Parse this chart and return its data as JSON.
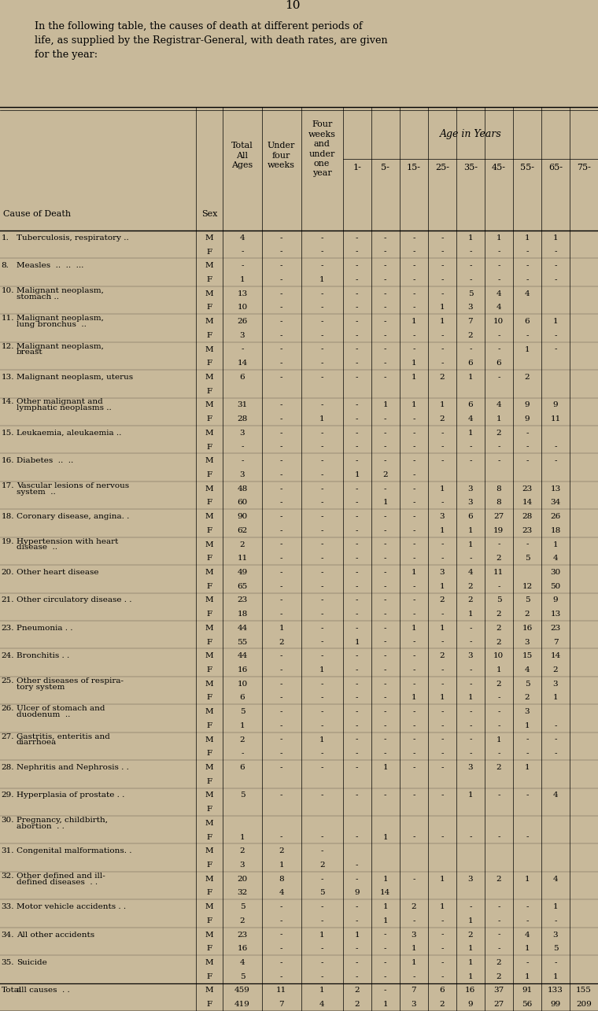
{
  "page_number": "10",
  "intro_text": "In the following table, the causes of death at different periods of\nlife, as supplied by the Registrar-General, with death rates, are given\nfor the year:",
  "bg_color": "#c8b99a",
  "age_in_years_label": "Age in Years",
  "rows": [
    {
      "num": "1.",
      "cause": "Tuberculosis, respiratory ..",
      "M": [
        "4",
        "-",
        "-",
        "-",
        "-",
        "-",
        "-",
        "1",
        "1",
        "1",
        "1"
      ],
      "F": [
        "-",
        "-",
        "-",
        "-",
        "-",
        "-",
        "-",
        "-",
        "-",
        "-",
        "-"
      ]
    },
    {
      "num": "8.",
      "cause": "Measles  ..  ..  ...",
      "M": [
        "-",
        "-",
        "-",
        "-",
        "-",
        "-",
        "-",
        "-",
        "-",
        "-",
        "-"
      ],
      "F": [
        "1",
        "-",
        "1",
        "-",
        "-",
        "-",
        "-",
        "-",
        "-",
        "-",
        "-"
      ]
    },
    {
      "num": "10.",
      "cause": "Malignant neoplasm,\nstomach ..",
      "M": [
        "13",
        "-",
        "-",
        "-",
        "-",
        "-",
        "-",
        "5",
        "4",
        "4",
        ""
      ],
      "F": [
        "10",
        "-",
        "-",
        "-",
        "-",
        "-",
        "1",
        "3",
        "4",
        "",
        ""
      ]
    },
    {
      "num": "11.",
      "cause": "Malignant neoplasm,\nlung bronchus  ..",
      "M": [
        "26",
        "-",
        "-",
        "-",
        "-",
        "1",
        "1",
        "7",
        "10",
        "6",
        "1"
      ],
      "F": [
        "3",
        "-",
        "-",
        "-",
        "-",
        "-",
        "-",
        "2",
        "-",
        "-",
        "-"
      ]
    },
    {
      "num": "12.",
      "cause": "Malignant neoplasm,\nbreast",
      "M": [
        "-",
        "-",
        "-",
        "-",
        "-",
        "-",
        "-",
        "-",
        "-",
        "1",
        "-"
      ],
      "F": [
        "14",
        "-",
        "-",
        "-",
        "-",
        "1",
        "-",
        "6",
        "6",
        "",
        ""
      ]
    },
    {
      "num": "13.",
      "cause": "Malignant neoplasm, uterus",
      "M": [
        "6",
        "-",
        "-",
        "-",
        "-",
        "1",
        "2",
        "1",
        "-",
        "2",
        ""
      ],
      "F": [
        "",
        "",
        "",
        "",
        "",
        "",
        "",
        "",
        "",
        "",
        ""
      ]
    },
    {
      "num": "14.",
      "cause": "Other malignant and\nlymphatic neoplasms ..",
      "M": [
        "31",
        "-",
        "-",
        "-",
        "1",
        "1",
        "1",
        "6",
        "4",
        "9",
        "9"
      ],
      "F": [
        "28",
        "-",
        "1",
        "-",
        "-",
        "-",
        "2",
        "4",
        "1",
        "9",
        "11"
      ]
    },
    {
      "num": "15.",
      "cause": "Leukaemia, aleukaemia ..",
      "M": [
        "3",
        "-",
        "-",
        "-",
        "-",
        "-",
        "-",
        "1",
        "2",
        "-",
        ""
      ],
      "F": [
        "-",
        "-",
        "-",
        "-",
        "-",
        "-",
        "-",
        "-",
        "-",
        "-",
        "-"
      ]
    },
    {
      "num": "16.",
      "cause": "Diabetes  ..  ..",
      "M": [
        "-",
        "-",
        "-",
        "-",
        "-",
        "-",
        "-",
        "-",
        "-",
        "-",
        "-"
      ],
      "F": [
        "3",
        "-",
        "-",
        "1",
        "2",
        "-",
        "",
        "",
        "",
        "",
        ""
      ]
    },
    {
      "num": "17.",
      "cause": "Vascular lesions of nervous\nsystem  ..",
      "M": [
        "48",
        "-",
        "-",
        "-",
        "-",
        "-",
        "1",
        "3",
        "8",
        "23",
        "13"
      ],
      "F": [
        "60",
        "-",
        "-",
        "-",
        "1",
        "-",
        "-",
        "3",
        "8",
        "14",
        "34"
      ]
    },
    {
      "num": "18.",
      "cause": "Coronary disease, angina. .",
      "M": [
        "90",
        "-",
        "-",
        "-",
        "-",
        "-",
        "3",
        "6",
        "27",
        "28",
        "26"
      ],
      "F": [
        "62",
        "-",
        "-",
        "-",
        "-",
        "-",
        "1",
        "1",
        "19",
        "23",
        "18"
      ]
    },
    {
      "num": "19.",
      "cause": "Hypertension with heart\ndisease  ..",
      "M": [
        "2",
        "-",
        "-",
        "-",
        "-",
        "-",
        "-",
        "1",
        "-",
        "-",
        "1"
      ],
      "F": [
        "11",
        "-",
        "-",
        "-",
        "-",
        "-",
        "-",
        "-",
        "2",
        "5",
        "4"
      ]
    },
    {
      "num": "20.",
      "cause": "Other heart disease",
      "M": [
        "49",
        "-",
        "-",
        "-",
        "-",
        "1",
        "3",
        "4",
        "11",
        "",
        "30"
      ],
      "F": [
        "65",
        "-",
        "-",
        "-",
        "-",
        "-",
        "1",
        "2",
        "-",
        "12",
        "50"
      ]
    },
    {
      "num": "21.",
      "cause": "Other circulatory disease . .",
      "M": [
        "23",
        "-",
        "-",
        "-",
        "-",
        "-",
        "2",
        "2",
        "5",
        "5",
        "9"
      ],
      "F": [
        "18",
        "-",
        "-",
        "-",
        "-",
        "-",
        "-",
        "1",
        "2",
        "2",
        "13"
      ]
    },
    {
      "num": "23.",
      "cause": "Pneumonia . .",
      "M": [
        "44",
        "1",
        "-",
        "-",
        "-",
        "1",
        "1",
        "-",
        "2",
        "16",
        "23"
      ],
      "F": [
        "55",
        "2",
        "-",
        "1",
        "-",
        "-",
        "-",
        "-",
        "2",
        "3",
        "7"
      ]
    },
    {
      "num": "24.",
      "cause": "Bronchitis . .",
      "M": [
        "44",
        "-",
        "-",
        "-",
        "-",
        "-",
        "2",
        "3",
        "10",
        "15",
        "14"
      ],
      "F": [
        "16",
        "-",
        "1",
        "-",
        "-",
        "-",
        "-",
        "-",
        "1",
        "4",
        "2"
      ]
    },
    {
      "num": "25.",
      "cause": "Other diseases of respira-\ntory system",
      "M": [
        "10",
        "-",
        "-",
        "-",
        "-",
        "-",
        "-",
        "-",
        "2",
        "5",
        "3"
      ],
      "F": [
        "6",
        "-",
        "-",
        "-",
        "-",
        "1",
        "1",
        "1",
        "-",
        "2",
        "1"
      ]
    },
    {
      "num": "26.",
      "cause": "Ulcer of stomach and\nduodenum  ..",
      "M": [
        "5",
        "-",
        "-",
        "-",
        "-",
        "-",
        "-",
        "-",
        "-",
        "3",
        ""
      ],
      "F": [
        "1",
        "-",
        "-",
        "-",
        "-",
        "-",
        "-",
        "-",
        "-",
        "1",
        "-"
      ]
    },
    {
      "num": "27.",
      "cause": "Gastritis, enteritis and\ndiarrhoea",
      "M": [
        "2",
        "-",
        "1",
        "-",
        "-",
        "-",
        "-",
        "-",
        "1",
        "-",
        "-"
      ],
      "F": [
        "-",
        "-",
        "-",
        "-",
        "-",
        "-",
        "-",
        "-",
        "-",
        "-",
        "-"
      ]
    },
    {
      "num": "28.",
      "cause": "Nephritis and Nephrosis . .",
      "M": [
        "6",
        "-",
        "-",
        "-",
        "1",
        "-",
        "-",
        "3",
        "2",
        "1",
        ""
      ],
      "F": [
        "",
        "",
        "",
        "",
        "",
        "",
        "",
        "",
        "",
        "",
        ""
      ]
    },
    {
      "num": "29.",
      "cause": "Hyperplasia of prostate . .",
      "M": [
        "5",
        "-",
        "-",
        "-",
        "-",
        "-",
        "-",
        "1",
        "-",
        "-",
        "4"
      ],
      "F": [
        "",
        "",
        "",
        "",
        "",
        "",
        "",
        "",
        "",
        "",
        ""
      ]
    },
    {
      "num": "30.",
      "cause": "Pregnancy, childbirth,\nabortion  . .",
      "M": [
        "",
        "",
        "",
        "",
        "",
        "",
        "",
        "",
        "",
        "",
        ""
      ],
      "F": [
        "1",
        "-",
        "-",
        "-",
        "1",
        "-",
        "-",
        "-",
        "-",
        "-",
        ""
      ]
    },
    {
      "num": "31.",
      "cause": "Congenital malformations. .",
      "M": [
        "2",
        "2",
        "-",
        "",
        "",
        "",
        "",
        "",
        "",
        "",
        ""
      ],
      "F": [
        "3",
        "1",
        "2",
        "-",
        "",
        "",
        "",
        "",
        "",
        "",
        ""
      ]
    },
    {
      "num": "32.",
      "cause": "Other defined and ill-\ndefined diseases  . .",
      "M": [
        "20",
        "8",
        "-",
        "-",
        "1",
        "-",
        "1",
        "3",
        "2",
        "1",
        "4"
      ],
      "F": [
        "32",
        "4",
        "5",
        "9",
        "14",
        "",
        "",
        "",
        "",
        "",
        ""
      ]
    },
    {
      "num": "33.",
      "cause": "Motor vehicle accidents . .",
      "M": [
        "5",
        "-",
        "-",
        "-",
        "1",
        "2",
        "1",
        "-",
        "-",
        "-",
        "1"
      ],
      "F": [
        "2",
        "-",
        "-",
        "-",
        "1",
        "-",
        "-",
        "1",
        "-",
        "-",
        "-"
      ]
    },
    {
      "num": "34.",
      "cause": "All other accidents",
      "M": [
        "23",
        "-",
        "1",
        "1",
        "-",
        "3",
        "-",
        "2",
        "-",
        "4",
        "3"
      ],
      "F": [
        "16",
        "-",
        "-",
        "-",
        "-",
        "1",
        "-",
        "1",
        "-",
        "1",
        "5"
      ]
    },
    {
      "num": "35.",
      "cause": "Suicide",
      "M": [
        "4",
        "-",
        "-",
        "-",
        "-",
        "1",
        "-",
        "1",
        "2",
        "-",
        "-"
      ],
      "F": [
        "5",
        "-",
        "-",
        "-",
        "-",
        "-",
        "-",
        "1",
        "2",
        "1",
        "1"
      ]
    },
    {
      "num": "Total",
      "cause": "all causes  . .",
      "M": [
        "459",
        "11",
        "1",
        "2",
        "-",
        "7",
        "6",
        "16",
        "37",
        "91",
        "133",
        "155"
      ],
      "F": [
        "419",
        "7",
        "4",
        "2",
        "1",
        "3",
        "2",
        "9",
        "27",
        "56",
        "99",
        "209"
      ]
    }
  ]
}
